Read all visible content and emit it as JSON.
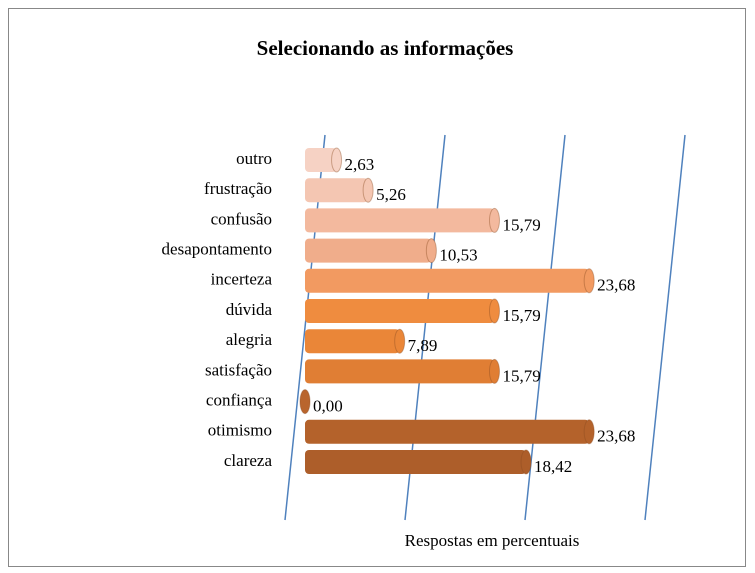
{
  "chart_data": {
    "type": "bar",
    "orientation": "horizontal",
    "title": "Selecionando as informações",
    "x_label": "Respostas em percentuais",
    "categories": [
      "outro",
      "frustração",
      "confusão",
      "desapontamento",
      "incerteza",
      "dúvida",
      "alegria",
      "satisfação",
      "confiança",
      "otimismo",
      "clareza"
    ],
    "values": [
      2.63,
      5.26,
      15.79,
      10.53,
      23.68,
      15.79,
      7.89,
      15.79,
      0.0,
      23.68,
      18.42
    ],
    "value_labels": [
      "2,63",
      "5,26",
      "15,79",
      "10,53",
      "23,68",
      "15,79",
      "7,89",
      "15,79",
      "0,00",
      "23,68",
      "18,42"
    ],
    "colors": [
      "#f6d2c4",
      "#f4c6b2",
      "#f3b99e",
      "#f0ad8b",
      "#f29a61",
      "#ef8c3f",
      "#ea8638",
      "#e07e34",
      "#b9652d",
      "#b4622b",
      "#ad5e2a"
    ],
    "xlim": [
      0,
      30
    ],
    "xticks": [
      0,
      10,
      20,
      30
    ],
    "grid": true
  }
}
